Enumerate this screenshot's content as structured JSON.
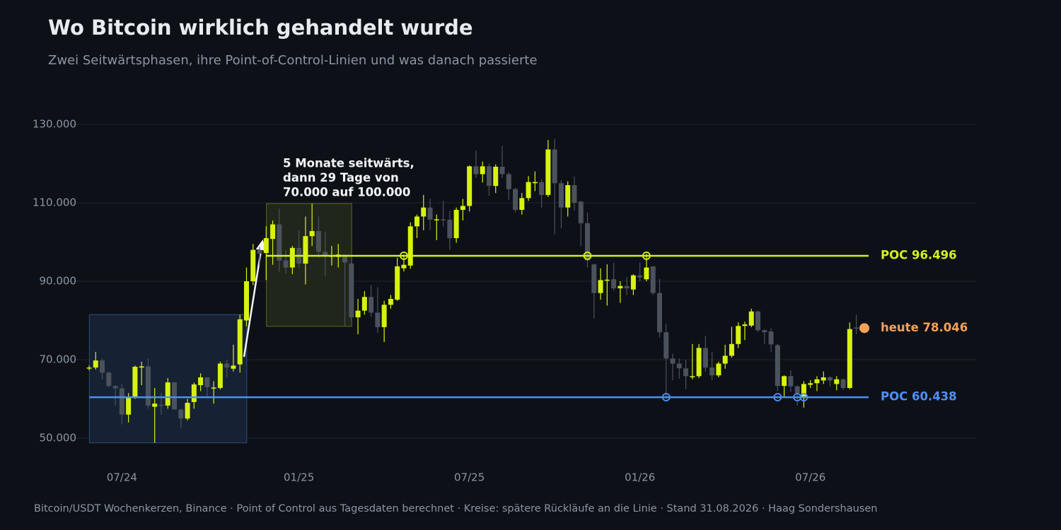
{
  "chart_data": {
    "type": "candlestick",
    "title": "Wo Bitcoin wirklich gehandelt wurde",
    "subtitle": "Zwei Seitwärtsphasen, ihre Point-of-Control-Linien und was danach passierte",
    "footer": "Bitcoin/USDT Wochenkerzen, Binance · Point of Control aus Tagesdaten berechnet · Kreise: spätere Rückläufe an die Linie · Stand 31.08.2026 · Haag Sondershausen",
    "annotation": [
      "5 Monate seitwärts,",
      "dann 29 Tage von",
      "70.000 auf 100.000"
    ],
    "up_color": "#d7f20f",
    "down_color": "#4b525c",
    "grid": true,
    "ylim": [
      44000,
      136000
    ],
    "yticks": [
      {
        "value": 50000,
        "label": "50.000"
      },
      {
        "value": 70000,
        "label": "70.000"
      },
      {
        "value": 90000,
        "label": "90.000"
      },
      {
        "value": 110000,
        "label": "110.000"
      },
      {
        "value": 130000,
        "label": "130.000"
      }
    ],
    "categories": [
      null,
      null,
      null,
      null,
      null,
      "07/24",
      null,
      null,
      null,
      null,
      null,
      null,
      null,
      null,
      null,
      null,
      null,
      null,
      null,
      null,
      null,
      null,
      null,
      null,
      null,
      null,
      null,
      null,
      null,
      null,
      null,
      null,
      "01/25",
      null,
      null,
      null,
      null,
      null,
      null,
      null,
      null,
      null,
      null,
      null,
      null,
      null,
      null,
      null,
      null,
      null,
      null,
      null,
      null,
      null,
      null,
      null,
      null,
      null,
      "07/25",
      null,
      null,
      null,
      null,
      null,
      null,
      null,
      null,
      null,
      null,
      null,
      null,
      null,
      null,
      null,
      null,
      null,
      null,
      null,
      null,
      null,
      null,
      null,
      null,
      null,
      "01/26",
      null,
      null,
      null,
      null,
      null,
      null,
      null,
      null,
      null,
      null,
      null,
      null,
      null,
      null,
      null,
      null,
      null,
      null,
      null,
      null,
      null,
      null,
      null,
      null,
      null,
      "07/26",
      null,
      null,
      null,
      null,
      null,
      null,
      null
    ],
    "open": [
      67800,
      68000,
      69800,
      66700,
      63300,
      62700,
      56000,
      60500,
      68000,
      68300,
      58000,
      58500,
      58300,
      64200,
      57300,
      55000,
      59200,
      63500,
      65500,
      62800,
      62800,
      69000,
      67700,
      68800,
      80000,
      90000,
      98000,
      97200,
      100800,
      104500,
      95300,
      93500,
      98500,
      94500,
      101500,
      102800,
      97500,
      96400,
      96200,
      96800,
      94500,
      80800,
      82500,
      86000,
      82000,
      78300,
      84000,
      85300,
      93300,
      94000,
      104000,
      106500,
      108800,
      105600,
      105800,
      105700,
      101000,
      108200,
      109200,
      119300,
      117300,
      119300,
      114300,
      119200,
      117300,
      113500,
      108200,
      111200,
      115000,
      115300,
      112000,
      123600,
      115000,
      108800,
      114500,
      110300,
      104800,
      94300,
      87000,
      90300,
      90500,
      88200,
      88800,
      87900,
      91500,
      90500,
      93800,
      87000,
      77000,
      70300,
      69000,
      67800,
      65700,
      65800,
      73000,
      68000,
      66000,
      69000,
      71000,
      74000,
      78600,
      78700,
      82300,
      77500,
      77200,
      73700,
      63300,
      65800,
      63200,
      60500,
      63600,
      64000,
      64700,
      65500,
      63800,
      65000,
      62800,
      78200
    ],
    "high": [
      68500,
      72000,
      70300,
      67000,
      63500,
      63800,
      61500,
      68500,
      69500,
      70300,
      62800,
      61500,
      65300,
      64300,
      57500,
      60000,
      64200,
      66500,
      65500,
      64500,
      69500,
      70000,
      73800,
      81500,
      93500,
      99500,
      98700,
      104000,
      105500,
      108500,
      98000,
      99000,
      103000,
      106500,
      109800,
      106500,
      102500,
      99000,
      99500,
      96800,
      95000,
      85500,
      87500,
      89000,
      88500,
      85000,
      86500,
      96000,
      96800,
      105000,
      107000,
      112000,
      111000,
      107000,
      110500,
      108000,
      108800,
      111000,
      119500,
      123300,
      120500,
      120000,
      119800,
      124500,
      117800,
      113800,
      112500,
      116800,
      118000,
      116000,
      126000,
      126300,
      115800,
      115500,
      116700,
      110500,
      107500,
      94500,
      93300,
      94300,
      94700,
      90000,
      91000,
      91800,
      94800,
      97000,
      93800,
      90600,
      79200,
      71500,
      70300,
      70000,
      74000,
      74000,
      76100,
      72000,
      69500,
      73800,
      78400,
      79500,
      79700,
      83000,
      82500,
      77800,
      78000,
      74000,
      66000,
      67300,
      63500,
      64500,
      64800,
      65800,
      67000,
      65800,
      65800,
      65300,
      79500,
      81400
    ],
    "low": [
      67300,
      67500,
      65000,
      63000,
      58300,
      53500,
      54000,
      60000,
      63500,
      57500,
      48800,
      56000,
      57500,
      57300,
      52500,
      54500,
      57500,
      62000,
      60500,
      58800,
      62400,
      65500,
      67000,
      66700,
      78500,
      89000,
      94000,
      90300,
      94200,
      92500,
      92000,
      91800,
      93500,
      89200,
      99000,
      96000,
      91200,
      94000,
      93500,
      78500,
      79800,
      76500,
      81500,
      81000,
      76800,
      74500,
      83000,
      85000,
      92500,
      93200,
      101000,
      103000,
      103000,
      100500,
      104000,
      98000,
      99800,
      105500,
      107800,
      116300,
      115200,
      111800,
      112500,
      116300,
      110800,
      107500,
      107000,
      110500,
      113000,
      108800,
      111500,
      102000,
      103500,
      106500,
      108000,
      99000,
      93500,
      80500,
      85300,
      83800,
      87600,
      84500,
      86500,
      86500,
      90000,
      90000,
      86500,
      75700,
      60000,
      64800,
      65200,
      62500,
      65000,
      65300,
      67000,
      64800,
      65500,
      67700,
      70500,
      73000,
      75000,
      78300,
      77000,
      74000,
      72000,
      62000,
      60500,
      61800,
      58300,
      57800,
      62800,
      62000,
      63800,
      63200,
      62200,
      62300,
      62500,
      76500
    ],
    "close": [
      68000,
      69800,
      66700,
      63300,
      62700,
      56000,
      60500,
      68200,
      68300,
      58300,
      58800,
      58300,
      64200,
      57300,
      55000,
      59000,
      63700,
      65500,
      63000,
      62900,
      69000,
      68000,
      68500,
      80300,
      90000,
      98000,
      97000,
      101000,
      104500,
      95300,
      93500,
      98500,
      94500,
      101500,
      102800,
      97500,
      96600,
      96500,
      96800,
      94800,
      80800,
      82500,
      86000,
      82000,
      78300,
      84000,
      85500,
      93800,
      94200,
      104000,
      106500,
      108800,
      105700,
      105800,
      105700,
      101000,
      108200,
      109200,
      119300,
      117300,
      119300,
      114300,
      119200,
      117300,
      113500,
      108200,
      111200,
      115300,
      115300,
      112000,
      123600,
      115000,
      108800,
      114500,
      110000,
      104800,
      95300,
      87000,
      90300,
      90400,
      88200,
      88800,
      88200,
      91500,
      91000,
      93500,
      87000,
      77000,
      70300,
      69000,
      67800,
      65800,
      65800,
      73000,
      68000,
      66000,
      69000,
      71000,
      74000,
      78600,
      79000,
      82300,
      77500,
      77000,
      73900,
      63300,
      65800,
      63200,
      61500,
      63800,
      64000,
      65000,
      65500,
      64700,
      65000,
      62800,
      77800,
      78046
    ],
    "phases": [
      {
        "start": 0,
        "end": 23,
        "box_fill": "#162133",
        "box_stroke": "#2b4f80",
        "poc_label": "POC 60.438",
        "poc_value": 60438,
        "poc_color": "#4f8ff7",
        "retests": [
          88,
          105,
          108,
          109
        ]
      },
      {
        "start": 27,
        "end": 39,
        "box_fill": "#20261a",
        "box_stroke": "#5c6a1c",
        "poc_label": "POC 96.496",
        "poc_value": 96496,
        "poc_color": "#d4f01c",
        "retests": [
          48,
          76,
          85
        ]
      }
    ],
    "today": {
      "label": "heute 78.046",
      "value": 78046,
      "color": "#f5a05a"
    }
  }
}
